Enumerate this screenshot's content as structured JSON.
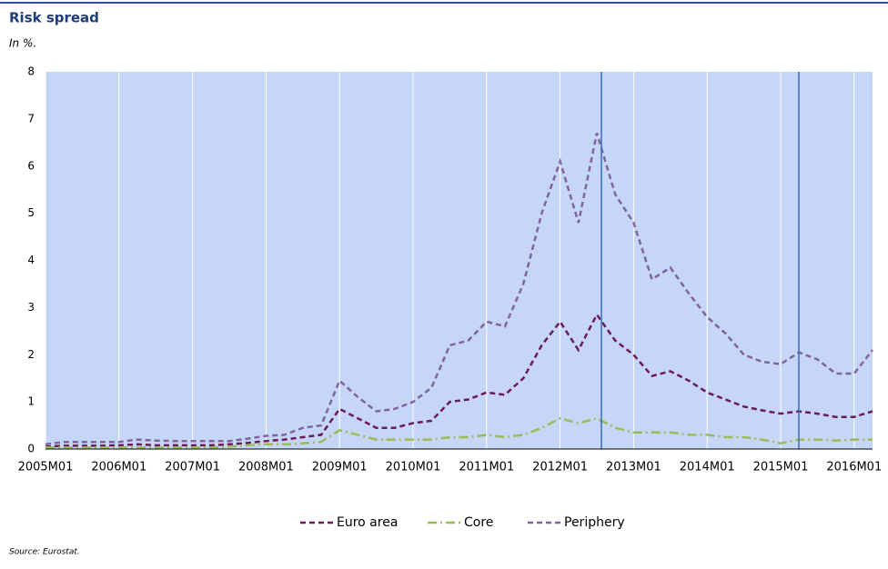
{
  "chart_data": {
    "type": "line",
    "title": "Risk spread",
    "subtitle": "In %.",
    "source": "Source: Eurostat.",
    "categories": [
      "2005M01",
      null,
      null,
      null,
      "2006M01",
      null,
      null,
      null,
      "2007M01",
      null,
      null,
      null,
      "2008M01",
      null,
      null,
      null,
      "2009M01",
      null,
      null,
      null,
      "2010M01",
      null,
      null,
      null,
      "2011M01",
      null,
      null,
      null,
      "2012M01",
      null,
      null,
      null,
      "2013M01",
      null,
      null,
      null,
      "2014M01",
      null,
      null,
      null,
      "2015M01",
      null,
      null,
      null,
      "2016M01",
      null
    ],
    "series": [
      {
        "name": "Euro area",
        "color": "#6b1a5c",
        "dash": "6,4",
        "values": [
          0.05,
          0.07,
          0.07,
          0.07,
          0.08,
          0.1,
          0.08,
          0.08,
          0.08,
          0.08,
          0.1,
          0.13,
          0.17,
          0.2,
          0.25,
          0.3,
          0.85,
          0.65,
          0.45,
          0.45,
          0.55,
          0.6,
          1.0,
          1.05,
          1.2,
          1.15,
          1.5,
          2.2,
          2.7,
          2.1,
          2.85,
          2.3,
          2.0,
          1.55,
          1.65,
          1.45,
          1.2,
          1.05,
          0.9,
          0.82,
          0.75,
          0.8,
          0.75,
          0.68,
          0.68,
          0.8
        ]
      },
      {
        "name": "Core",
        "color": "#9bbb59",
        "dash": "10,4,2,4",
        "values": [
          0.03,
          0.03,
          0.03,
          0.03,
          0.03,
          0.03,
          0.03,
          0.03,
          0.03,
          0.03,
          0.05,
          0.08,
          0.1,
          0.1,
          0.12,
          0.15,
          0.4,
          0.3,
          0.2,
          0.2,
          0.2,
          0.2,
          0.25,
          0.25,
          0.3,
          0.25,
          0.3,
          0.45,
          0.65,
          0.55,
          0.65,
          0.45,
          0.35,
          0.35,
          0.35,
          0.3,
          0.3,
          0.25,
          0.25,
          0.2,
          0.12,
          0.2,
          0.2,
          0.18,
          0.2,
          0.2
        ]
      },
      {
        "name": "Periphery",
        "color": "#8064a2",
        "dash": "6,4",
        "values": [
          0.1,
          0.15,
          0.15,
          0.15,
          0.15,
          0.2,
          0.18,
          0.17,
          0.17,
          0.17,
          0.17,
          0.22,
          0.28,
          0.3,
          0.45,
          0.5,
          1.45,
          1.1,
          0.8,
          0.85,
          1.0,
          1.3,
          2.2,
          2.3,
          2.7,
          2.6,
          3.5,
          5.0,
          6.1,
          4.8,
          6.7,
          5.4,
          4.8,
          3.6,
          3.85,
          3.3,
          2.8,
          2.45,
          2.0,
          1.85,
          1.8,
          2.05,
          1.9,
          1.6,
          1.6,
          2.1
        ]
      }
    ],
    "ylim": [
      0,
      8
    ],
    "yticks": [
      0,
      1,
      2,
      3,
      4,
      5,
      6,
      7,
      8
    ],
    "background": "#c6d6f7"
  }
}
